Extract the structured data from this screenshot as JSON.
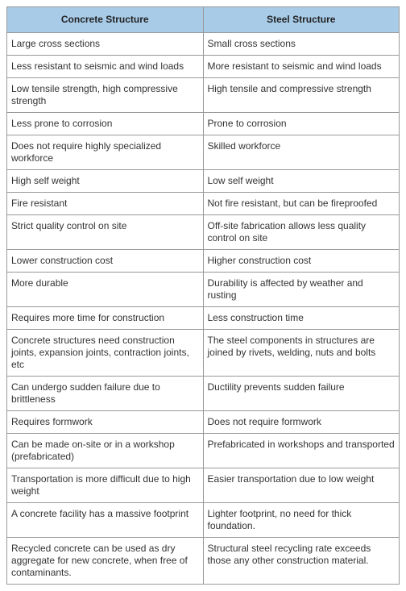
{
  "table": {
    "headers": [
      "Concrete Structure",
      "Steel Structure"
    ],
    "header_bg": "#a8cbe8",
    "border_color": "#999999",
    "rows": [
      [
        "Large cross sections",
        "Small cross sections"
      ],
      [
        "Less resistant to seismic and wind loads",
        "More resistant to seismic and wind loads"
      ],
      [
        "Low tensile strength, high compressive strength",
        "High tensile and compressive strength"
      ],
      [
        "Less prone to corrosion",
        "Prone to corrosion"
      ],
      [
        "Does not require highly specialized workforce",
        "Skilled workforce"
      ],
      [
        "High self weight",
        "Low self weight"
      ],
      [
        "Fire resistant",
        "Not fire resistant, but can be fireproofed"
      ],
      [
        "Strict quality control on site",
        "Off-site fabrication allows less quality control on site"
      ],
      [
        "Lower construction cost",
        "Higher construction cost"
      ],
      [
        "More durable",
        "Durability is affected by weather and rusting"
      ],
      [
        "Requires more time for construction",
        "Less construction time"
      ],
      [
        "Concrete structures need construction joints, expansion joints, contraction joints, etc",
        "The steel components in structures are joined by rivets, welding, nuts and bolts"
      ],
      [
        "Can undergo sudden failure due to brittleness",
        "Ductility prevents sudden failure"
      ],
      [
        "Requires formwork",
        "Does not require formwork"
      ],
      [
        "Can be made on-site or in a workshop (prefabricated)",
        "Prefabricated in workshops and transported"
      ],
      [
        "Transportation is more difficult due to high weight",
        "Easier transportation due to low weight"
      ],
      [
        "A concrete facility has a massive footprint",
        "Lighter footprint, no need for thick foundation."
      ],
      [
        "Recycled concrete can be used as dry aggregate for new concrete, when free of contaminants.",
        "Structural steel recycling rate exceeds those any other construction material."
      ]
    ]
  }
}
